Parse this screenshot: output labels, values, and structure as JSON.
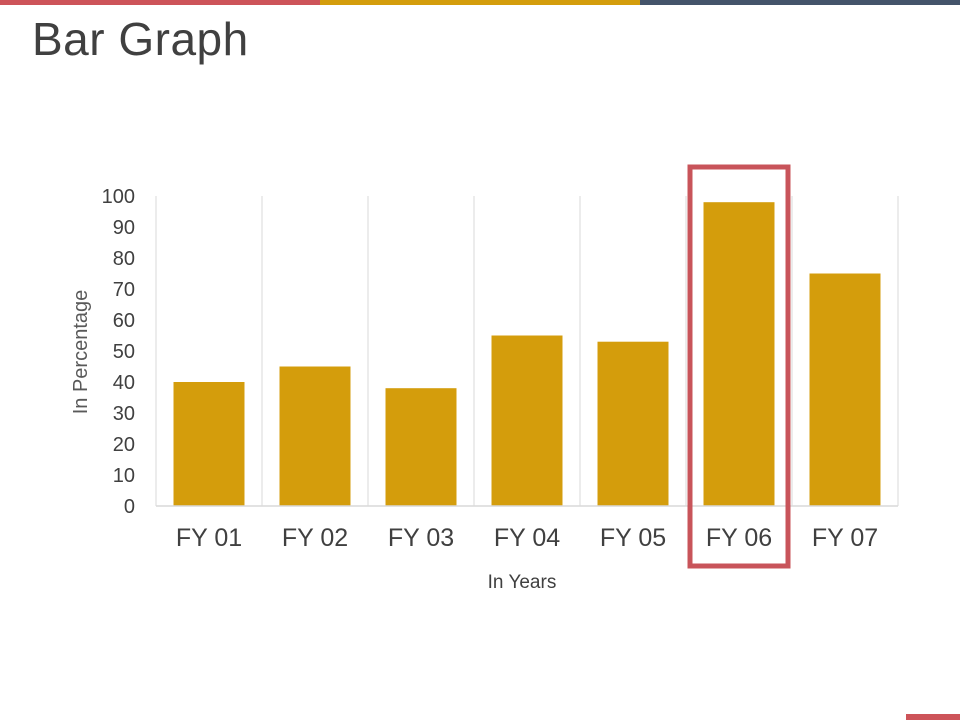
{
  "slide": {
    "title": "Bar Graph"
  },
  "theme": {
    "accent_red": "#cd5459",
    "accent_gold": "#d49d0c",
    "accent_navy": "#44546a",
    "bar_color": "#d49d0c",
    "highlight_color": "#c8545a",
    "grid_color": "#d9d9d9",
    "text_color": "#404040"
  },
  "chart_data": {
    "type": "bar",
    "categories": [
      "FY 01",
      "FY 02",
      "FY 03",
      "FY 04",
      "FY 05",
      "FY 06",
      "FY 07"
    ],
    "values": [
      40,
      45,
      38,
      55,
      53,
      98,
      75
    ],
    "xlabel": "In Years",
    "ylabel": "In Percentage",
    "ylim": [
      0,
      100
    ],
    "yticks": [
      0,
      10,
      20,
      30,
      40,
      50,
      60,
      70,
      80,
      90,
      100
    ],
    "grid": "vertical category dividers",
    "legend": "none",
    "highlight_category": "FY 06"
  }
}
